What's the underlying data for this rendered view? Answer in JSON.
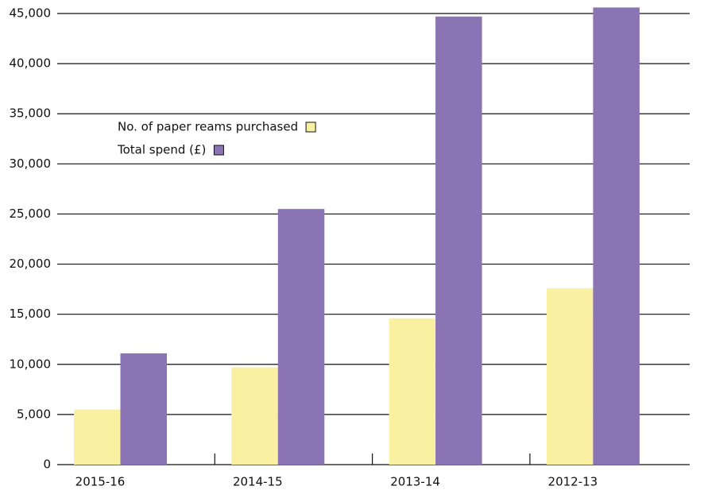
{
  "chart_data": {
    "type": "bar",
    "categories": [
      "2015-16",
      "2014-15",
      "2013-14",
      "2012-13"
    ],
    "series": [
      {
        "name": "No. of paper reams purchased",
        "color": "#f9f1a1",
        "values": [
          5500,
          9700,
          14600,
          17600
        ]
      },
      {
        "name": "Total spend (£)",
        "color": "#8b74b3",
        "values": [
          11100,
          25500,
          44700,
          45600
        ]
      }
    ],
    "ylim": [
      0,
      45000
    ],
    "yticks": [
      0,
      {
        "value": 5000,
        "label": "5,000"
      },
      {
        "value": 10000,
        "label": "10,000"
      },
      {
        "value": 15000,
        "label": "15,000"
      },
      {
        "value": 20000,
        "label": "20,000"
      },
      {
        "value": 25000,
        "label": "25,000"
      },
      {
        "value": 30000,
        "label": "30,000"
      },
      {
        "value": 35000,
        "label": "35,000"
      },
      {
        "value": 40000,
        "label": "40,000"
      },
      {
        "value": 45000,
        "label": "45,000"
      }
    ],
    "grid": true
  }
}
